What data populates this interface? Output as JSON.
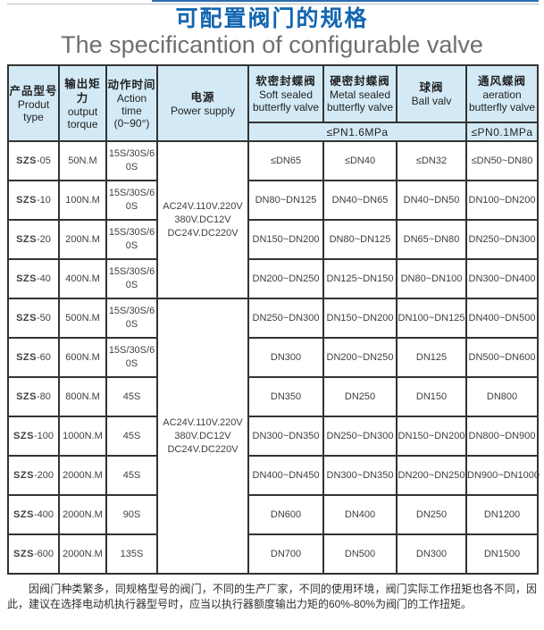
{
  "page": {
    "title_zh": "可配置阀门的规格",
    "title_en": "The specificantion of configurable valve"
  },
  "colors": {
    "title_blue": "#1266b0",
    "subtitle_gray": "#6e6e6e",
    "header_bg": "#d3eaf6",
    "border": "#333333"
  },
  "table": {
    "columns": [
      {
        "zh": "产品型号",
        "en": "Produt\ntype"
      },
      {
        "zh": "输出矩力",
        "en": "output\ntorque"
      },
      {
        "zh": "动作时间",
        "en": "Action time\n(0~90°)"
      },
      {
        "zh": "电源",
        "en": "Power supply"
      },
      {
        "zh": "软密封蝶阀",
        "en": "Soft sealed\nbutterfly valve"
      },
      {
        "zh": "硬密封蝶阀",
        "en": "Metal sealed\nbutterfly valve"
      },
      {
        "zh": "球阀",
        "en": "Ball valv"
      },
      {
        "zh": "通风蝶阀",
        "en": "aeration\nbutterfly valve"
      }
    ],
    "pressure_row": {
      "pn16": "≤PN1.6MPa",
      "pn01": "≤PN0.1MPa"
    },
    "power_supply": "AC24V.110V.220V\n380V.DC12V\nDC24V.DC220V",
    "power_spans": [
      {
        "row": 0,
        "rowspan": 4,
        "lifted": false
      },
      {
        "row": 4,
        "rowspan": 7,
        "lifted": true
      }
    ],
    "rows": [
      {
        "model": "SZS-05",
        "torque": "50N.M",
        "time": "15S/30S/60S",
        "soft": "≤DN65",
        "metal": "≤DN40",
        "ball": "≤DN32",
        "aeration": "≤DN50~DN80"
      },
      {
        "model": "SZS-10",
        "torque": "100N.M",
        "time": "15S/30S/60S",
        "soft": "DN80~DN125",
        "metal": "DN40~DN65",
        "ball": "DN40~DN50",
        "aeration": "DN100~DN200"
      },
      {
        "model": "SZS-20",
        "torque": "200N.M",
        "time": "15S/30S/60S",
        "soft": "DN150~DN200",
        "metal": "DN80~DN125",
        "ball": "DN65~DN80",
        "aeration": "DN250~DN300"
      },
      {
        "model": "SZS-40",
        "torque": "400N.M",
        "time": "15S/30S/60S",
        "soft": "DN200~DN250",
        "metal": "DN125~DN150",
        "ball": "DN80~DN100",
        "aeration": "DN300~DN400"
      },
      {
        "model": "SZS-50",
        "torque": "500N.M",
        "time": "15S/30S/60S",
        "soft": "DN250~DN300",
        "metal": "DN150~DN200",
        "ball": "DN100~DN125",
        "aeration": "DN400~DN500"
      },
      {
        "model": "SZS-60",
        "torque": "600N.M",
        "time": "15S/30S/60S",
        "soft": "DN300",
        "metal": "DN200~DN250",
        "ball": "DN125",
        "aeration": "DN500~DN600"
      },
      {
        "model": "SZS-80",
        "torque": "800N.M",
        "time": "45S",
        "soft": "DN350",
        "metal": "DN250",
        "ball": "DN150",
        "aeration": "DN800"
      },
      {
        "model": "SZS-100",
        "torque": "1000N.M",
        "time": "45S",
        "soft": "DN300~DN350",
        "metal": "DN250~DN300",
        "ball": "DN150~DN200",
        "aeration": "DN800~DN900"
      },
      {
        "model": "SZS-200",
        "torque": "2000N.M",
        "time": "45S",
        "soft": "DN400~DN450",
        "metal": "DN300~DN350",
        "ball": "DN200~DN250",
        "aeration": "DN900~DN1000"
      },
      {
        "model": "SZS-400",
        "torque": "2000N.M",
        "time": "90S",
        "soft": "DN600",
        "metal": "DN400",
        "ball": "DN250",
        "aeration": "DN1200"
      },
      {
        "model": "SZS-600",
        "torque": "2000N.M",
        "time": "135S",
        "soft": "DN700",
        "metal": "DN500",
        "ball": "DN300",
        "aeration": "DN1500"
      }
    ]
  },
  "footer": {
    "note": "因阀门种类繁多，同规格型号的阀门，不同的生产厂家，不同的使用环境，阀门实际工作扭矩也各不同，因此，建议在选择电动机执行器型号时，应当以执行器额度输出力矩的60%-80%为阀门的工作扭矩。"
  }
}
